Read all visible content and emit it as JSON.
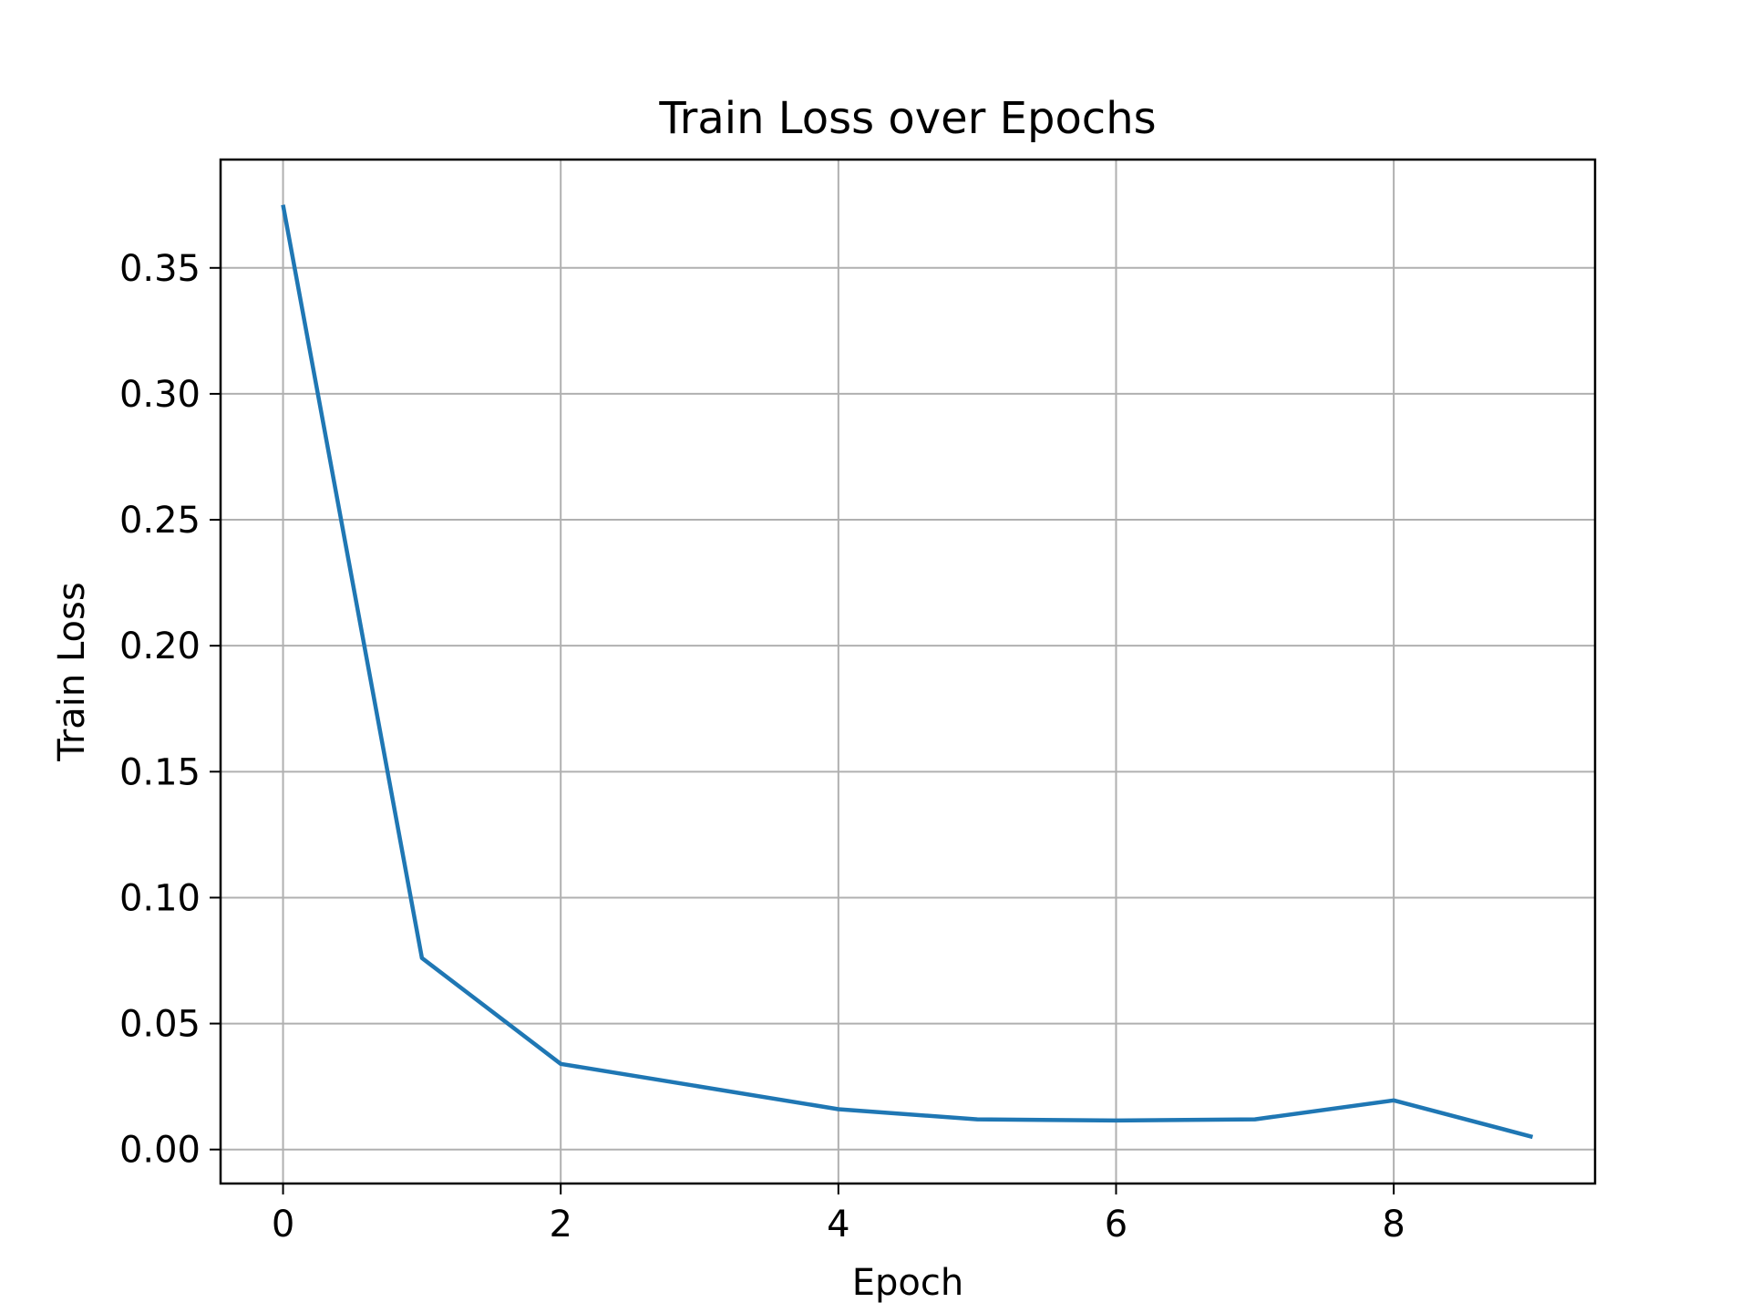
{
  "chart_data": {
    "type": "line",
    "title": "Train Loss over Epochs",
    "xlabel": "Epoch",
    "ylabel": "Train Loss",
    "xlim": [
      -0.45,
      9.45
    ],
    "ylim": [
      -0.0135,
      0.393
    ],
    "xticks": [
      0,
      2,
      4,
      6,
      8
    ],
    "xtick_labels": [
      "0",
      "2",
      "4",
      "6",
      "8"
    ],
    "yticks": [
      0.0,
      0.05,
      0.1,
      0.15,
      0.2,
      0.25,
      0.3,
      0.35
    ],
    "ytick_labels": [
      "0.00",
      "0.05",
      "0.10",
      "0.15",
      "0.20",
      "0.25",
      "0.30",
      "0.35"
    ],
    "grid": true,
    "series": [
      {
        "color": "#1f77b4",
        "x": [
          0,
          1,
          2,
          3,
          4,
          5,
          6,
          7,
          8,
          9
        ],
        "y": [
          0.375,
          0.076,
          0.034,
          0.025,
          0.016,
          0.012,
          0.0115,
          0.012,
          0.0195,
          0.005
        ]
      }
    ]
  }
}
